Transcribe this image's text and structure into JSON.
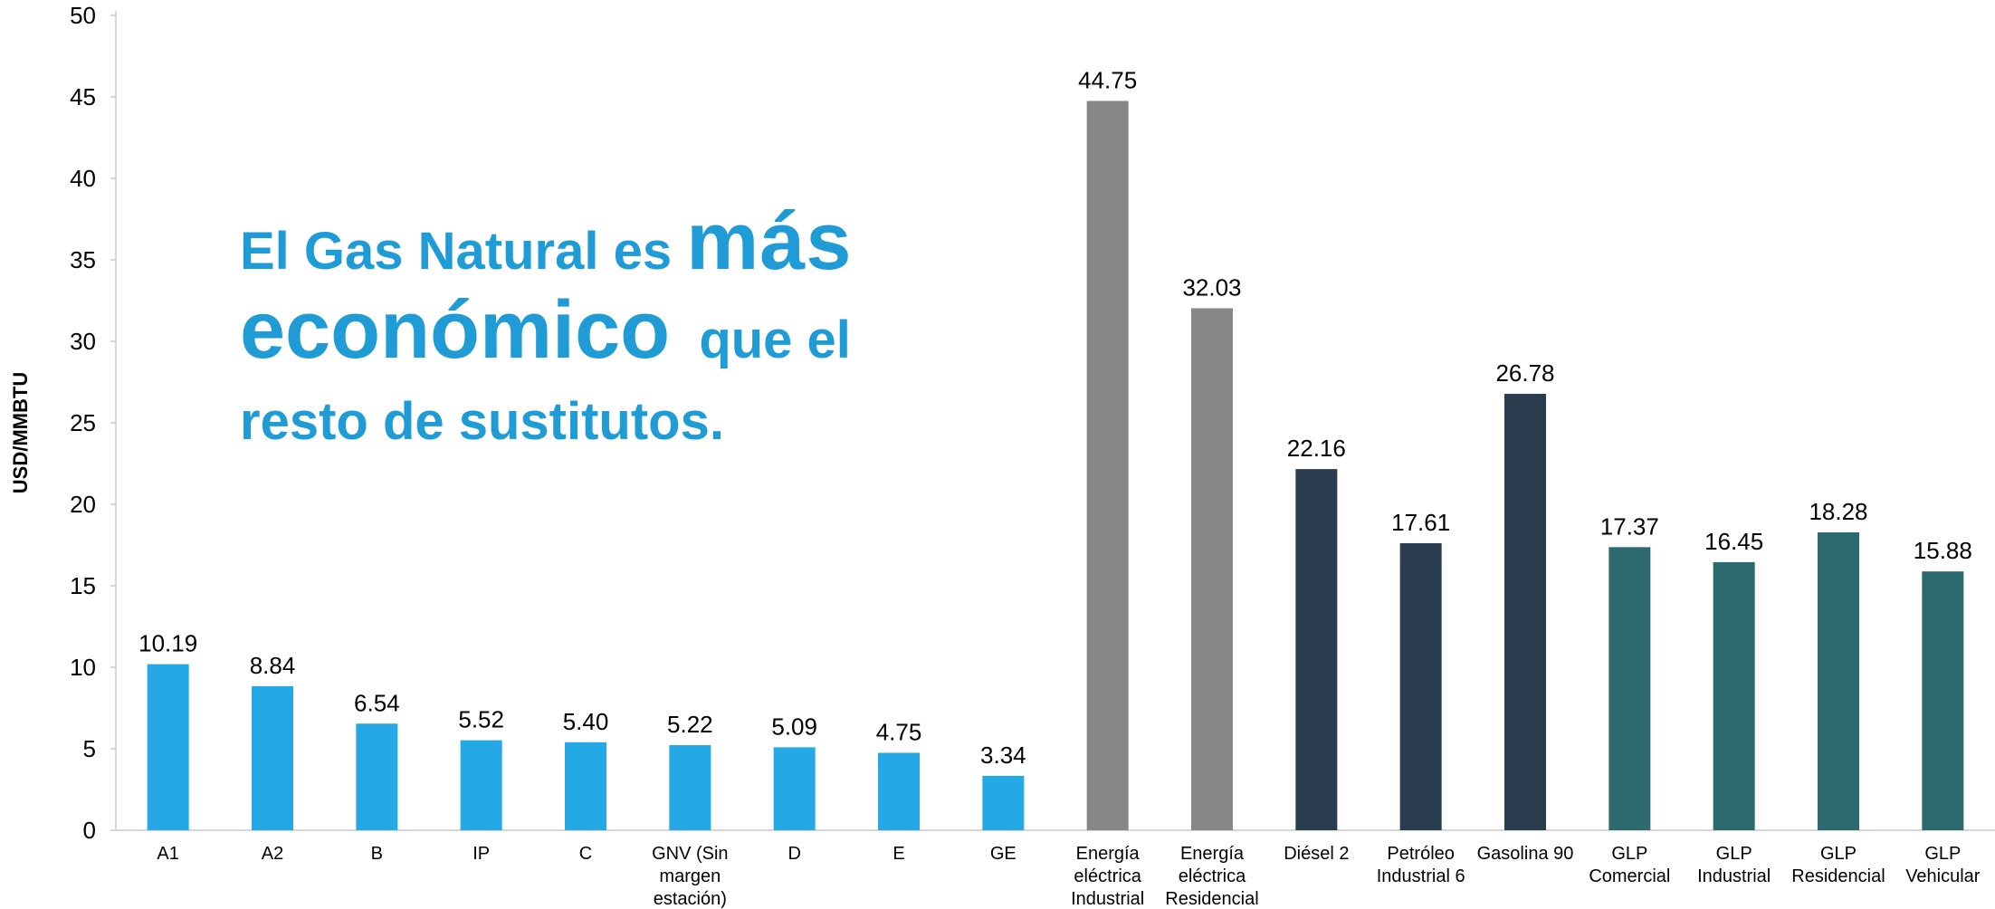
{
  "headline": {
    "part1": "El Gas Natural es ",
    "part2": "más",
    "part3": "económico",
    "part4": "  que el",
    "part5": "resto de sustitutos."
  },
  "chart_data": {
    "type": "bar",
    "ylabel": "USD/MMBTU",
    "ylim": [
      0,
      50
    ],
    "yticks": [
      0,
      5,
      10,
      15,
      20,
      25,
      30,
      35,
      40,
      45,
      50
    ],
    "grid": false,
    "legend": "none",
    "categories": [
      "A1",
      "A2",
      "B",
      "IP",
      "C",
      "GNV (Sin margen estación)",
      "D",
      "E",
      "GE",
      "Energía eléctrica Industrial",
      "Energía eléctrica Residencial",
      "Diésel 2",
      "Petróleo Industrial 6",
      "Gasolina 90",
      "GLP Comercial",
      "GLP Industrial",
      "GLP Residencial",
      "GLP Vehicular"
    ],
    "category_lines": [
      [
        "A1"
      ],
      [
        "A2"
      ],
      [
        "B"
      ],
      [
        "IP"
      ],
      [
        "C"
      ],
      [
        "GNV (Sin",
        "margen",
        "estación)"
      ],
      [
        "D"
      ],
      [
        "E"
      ],
      [
        "GE"
      ],
      [
        "Energía",
        "eléctrica",
        "Industrial"
      ],
      [
        "Energía",
        "eléctrica",
        "Residencial"
      ],
      [
        "Diésel 2"
      ],
      [
        "Petróleo",
        "Industrial 6"
      ],
      [
        "Gasolina 90"
      ],
      [
        "GLP",
        "Comercial"
      ],
      [
        "GLP",
        "Industrial"
      ],
      [
        "GLP",
        "Residencial"
      ],
      [
        "GLP",
        "Vehicular"
      ]
    ],
    "values": [
      10.19,
      8.84,
      6.54,
      5.52,
      5.4,
      5.22,
      5.09,
      4.75,
      3.34,
      44.75,
      32.03,
      22.16,
      17.61,
      26.78,
      17.37,
      16.45,
      18.28,
      15.88
    ],
    "value_labels": [
      "10.19",
      "8.84",
      "6.54",
      "5.52",
      "5.40",
      "5.22",
      "5.09",
      "4.75",
      "3.34",
      "44.75",
      "32.03",
      "22.16",
      "17.61",
      "26.78",
      "17.37",
      "16.45",
      "18.28",
      "15.88"
    ],
    "colors": [
      "#24a9e6",
      "#24a9e6",
      "#24a9e6",
      "#24a9e6",
      "#24a9e6",
      "#24a9e6",
      "#24a9e6",
      "#24a9e6",
      "#24a9e6",
      "#878787",
      "#878787",
      "#2a3d4f",
      "#2a3d4f",
      "#2a3d4f",
      "#2c6a6f",
      "#2c6a6f",
      "#2c6a6f",
      "#2c6a6f"
    ]
  }
}
